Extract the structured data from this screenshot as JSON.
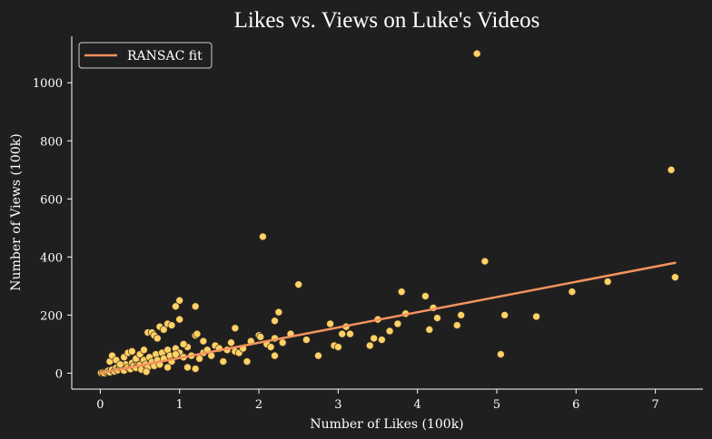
{
  "chart_data": {
    "type": "scatter",
    "title": "Likes vs. Views on Luke's Videos",
    "xlabel": "Number of Likes (100k)",
    "ylabel": "Number of Views (100k)",
    "xlim": [
      -0.36,
      7.6
    ],
    "ylim": [
      -55,
      1160
    ],
    "xticks": [
      "0",
      "1",
      "2",
      "3",
      "4",
      "5",
      "6",
      "7"
    ],
    "yticks": [
      "0",
      "200",
      "400",
      "600",
      "800",
      "1000"
    ],
    "grid": false,
    "legend_position": "top-left",
    "colors": {
      "background": "#201f20",
      "points": "#ffd166",
      "point_edge": "#3a3020",
      "fit_line": "#f4935e",
      "axes": "#ffffff"
    },
    "series": [
      {
        "type": "scatter",
        "points": [
          [
            0.01,
            1
          ],
          [
            0.03,
            2
          ],
          [
            0.05,
            0
          ],
          [
            0.08,
            5
          ],
          [
            0.1,
            8
          ],
          [
            0.12,
            3
          ],
          [
            0.15,
            12
          ],
          [
            0.18,
            6
          ],
          [
            0.2,
            18
          ],
          [
            0.22,
            10
          ],
          [
            0.25,
            22
          ],
          [
            0.28,
            15
          ],
          [
            0.3,
            9
          ],
          [
            0.32,
            30
          ],
          [
            0.35,
            20
          ],
          [
            0.38,
            14
          ],
          [
            0.4,
            35
          ],
          [
            0.42,
            25
          ],
          [
            0.45,
            18
          ],
          [
            0.47,
            40
          ],
          [
            0.5,
            28
          ],
          [
            0.52,
            12
          ],
          [
            0.55,
            45
          ],
          [
            0.57,
            30
          ],
          [
            0.6,
            20
          ],
          [
            0.62,
            55
          ],
          [
            0.65,
            38
          ],
          [
            0.68,
            25
          ],
          [
            0.7,
            65
          ],
          [
            0.72,
            45
          ],
          [
            0.75,
            30
          ],
          [
            0.78,
            70
          ],
          [
            0.8,
            50
          ],
          [
            0.85,
            80
          ],
          [
            0.88,
            60
          ],
          [
            0.9,
            40
          ],
          [
            0.95,
            85
          ],
          [
            1.0,
            70
          ],
          [
            1.05,
            55
          ],
          [
            1.1,
            90
          ],
          [
            0.12,
            40
          ],
          [
            0.15,
            60
          ],
          [
            0.2,
            45
          ],
          [
            0.25,
            30
          ],
          [
            0.3,
            55
          ],
          [
            0.35,
            70
          ],
          [
            0.4,
            75
          ],
          [
            0.45,
            50
          ],
          [
            0.5,
            65
          ],
          [
            0.55,
            80
          ],
          [
            0.6,
            140
          ],
          [
            0.65,
            140
          ],
          [
            0.68,
            130
          ],
          [
            0.72,
            120
          ],
          [
            0.75,
            160
          ],
          [
            0.8,
            150
          ],
          [
            0.85,
            170
          ],
          [
            0.9,
            165
          ],
          [
            0.95,
            230
          ],
          [
            1.0,
            185
          ],
          [
            1.0,
            250
          ],
          [
            1.2,
            130
          ],
          [
            1.22,
            135
          ],
          [
            1.2,
            230
          ],
          [
            1.1,
            20
          ],
          [
            1.15,
            60
          ],
          [
            1.2,
            15
          ],
          [
            1.25,
            50
          ],
          [
            1.3,
            70
          ],
          [
            1.35,
            80
          ],
          [
            1.4,
            60
          ],
          [
            1.45,
            95
          ],
          [
            1.5,
            85
          ],
          [
            1.55,
            40
          ],
          [
            1.6,
            80
          ],
          [
            1.65,
            105
          ],
          [
            1.7,
            75
          ],
          [
            1.7,
            155
          ],
          [
            1.75,
            70
          ],
          [
            1.8,
            85
          ],
          [
            1.85,
            40
          ],
          [
            1.9,
            110
          ],
          [
            2.0,
            130
          ],
          [
            2.02,
            125
          ],
          [
            2.05,
            470
          ],
          [
            2.1,
            100
          ],
          [
            2.15,
            90
          ],
          [
            2.2,
            180
          ],
          [
            2.2,
            120
          ],
          [
            2.25,
            210
          ],
          [
            2.3,
            105
          ],
          [
            2.4,
            135
          ],
          [
            2.5,
            305
          ],
          [
            2.6,
            115
          ],
          [
            2.75,
            60
          ],
          [
            2.9,
            170
          ],
          [
            2.95,
            95
          ],
          [
            3.0,
            90
          ],
          [
            3.05,
            135
          ],
          [
            3.1,
            160
          ],
          [
            3.15,
            135
          ],
          [
            3.4,
            95
          ],
          [
            3.45,
            120
          ],
          [
            3.5,
            185
          ],
          [
            3.55,
            115
          ],
          [
            3.65,
            145
          ],
          [
            3.75,
            170
          ],
          [
            3.8,
            280
          ],
          [
            3.85,
            205
          ],
          [
            4.1,
            265
          ],
          [
            4.15,
            150
          ],
          [
            4.2,
            225
          ],
          [
            4.25,
            190
          ],
          [
            4.5,
            165
          ],
          [
            4.55,
            200
          ],
          [
            4.75,
            1100
          ],
          [
            4.85,
            385
          ],
          [
            5.05,
            65
          ],
          [
            5.1,
            200
          ],
          [
            5.5,
            195
          ],
          [
            5.95,
            280
          ],
          [
            6.4,
            315
          ],
          [
            7.2,
            700
          ],
          [
            7.25,
            330
          ],
          [
            2.2,
            60
          ],
          [
            1.3,
            110
          ],
          [
            0.95,
            65
          ],
          [
            1.05,
            100
          ],
          [
            0.85,
            20
          ],
          [
            0.58,
            5
          ]
        ]
      },
      {
        "type": "line",
        "name": "RANSAC fit",
        "points": [
          [
            0,
            0
          ],
          [
            7.25,
            380
          ]
        ]
      }
    ]
  }
}
